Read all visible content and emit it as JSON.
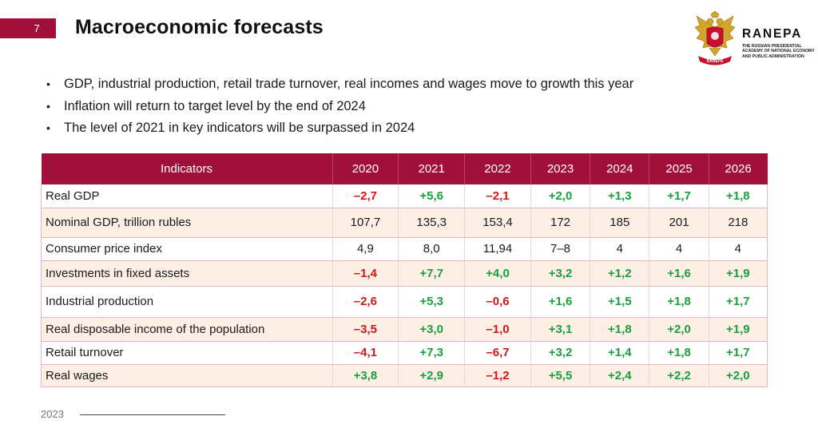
{
  "slide": {
    "number": "7",
    "title": "Macroeconomic forecasts"
  },
  "logo": {
    "name": "RANEPA",
    "subtitle": "THE RUSSIAN PRESIDENTIAL ACADEMY OF NATIONAL ECONOMY AND PUBLIC ADMINISTRATION",
    "ribbon": "RANEPA"
  },
  "bullets": [
    "GDP, industrial production, retail trade turnover, real incomes and wages move to growth this year",
    "Inflation will return to target level by the end of 2024",
    "The level of 2021 in key indicators will be surpassed in 2024"
  ],
  "table": {
    "headers": [
      "Indicators",
      "2020",
      "2021",
      "2022",
      "2023",
      "2024",
      "2025",
      "2026"
    ],
    "rows": [
      {
        "label": "Real GDP",
        "values": [
          "–2,7",
          "+5,6",
          "–2,1",
          "+2,0",
          "+1,3",
          "+1,7",
          "+1,8"
        ],
        "signs": [
          "neg",
          "pos",
          "neg",
          "pos",
          "pos",
          "pos",
          "pos"
        ],
        "alt": false
      },
      {
        "label": "Nominal GDP, trillion rubles",
        "values": [
          "107,7",
          "135,3",
          "153,4",
          "172",
          "185",
          "201",
          "218"
        ],
        "signs": [
          "neu",
          "neu",
          "neu",
          "neu",
          "neu",
          "neu",
          "neu"
        ],
        "alt": true
      },
      {
        "label": "Consumer price index",
        "values": [
          "4,9",
          "8,0",
          "11,94",
          "7–8",
          "4",
          "4",
          "4"
        ],
        "signs": [
          "neu",
          "neu",
          "neu",
          "neu",
          "neu",
          "neu",
          "neu"
        ],
        "alt": false
      },
      {
        "label": "Investments in fixed assets",
        "values": [
          "–1,4",
          "+7,7",
          "+4,0",
          "+3,2",
          "+1,2",
          "+1,6",
          "+1,9"
        ],
        "signs": [
          "neg",
          "pos",
          "pos",
          "pos",
          "pos",
          "pos",
          "pos"
        ],
        "alt": true
      },
      {
        "label": "Industrial production",
        "values": [
          "–2,6",
          "+5,3",
          "–0,6",
          "+1,6",
          "+1,5",
          "+1,8",
          "+1,7"
        ],
        "signs": [
          "neg",
          "pos",
          "neg",
          "pos",
          "pos",
          "pos",
          "pos"
        ],
        "alt": false
      },
      {
        "label": "Real disposable income of the population",
        "values": [
          "–3,5",
          "+3,0",
          "–1,0",
          "+3,1",
          "+1,8",
          "+2,0",
          "+1,9"
        ],
        "signs": [
          "neg",
          "pos",
          "neg",
          "pos",
          "pos",
          "pos",
          "pos"
        ],
        "alt": true
      },
      {
        "label": "Retail turnover",
        "values": [
          "–4,1",
          "+7,3",
          "–6,7",
          "+3,2",
          "+1,4",
          "+1,8",
          "+1,7"
        ],
        "signs": [
          "neg",
          "pos",
          "neg",
          "pos",
          "pos",
          "pos",
          "pos"
        ],
        "alt": false
      },
      {
        "label": "Real wages",
        "values": [
          "+3,8",
          "+2,9",
          "–1,2",
          "+5,5",
          "+2,4",
          "+2,2",
          "+2,0"
        ],
        "signs": [
          "pos",
          "pos",
          "neg",
          "pos",
          "pos",
          "pos",
          "pos"
        ],
        "alt": true
      }
    ]
  },
  "footer": {
    "year": "2023"
  },
  "colors": {
    "accent": "#a0103a",
    "negative": "#d01818",
    "positive": "#1aa03e",
    "alt_row": "#fdeee6"
  }
}
